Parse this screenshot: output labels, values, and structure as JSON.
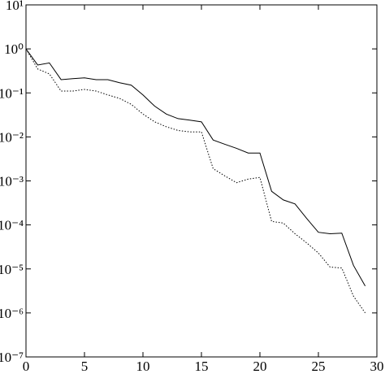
{
  "chart_data": {
    "type": "line",
    "x": [
      0,
      1,
      2,
      3,
      4,
      5,
      6,
      7,
      8,
      9,
      10,
      11,
      12,
      13,
      14,
      15,
      16,
      17,
      18,
      19,
      20,
      21,
      22,
      23,
      24,
      25,
      26,
      27,
      28,
      29
    ],
    "series": [
      {
        "color": "#000000",
        "dash": "solid",
        "values": [
          1.0,
          0.43,
          0.48,
          0.2,
          0.21,
          0.22,
          0.2,
          0.2,
          0.17,
          0.15,
          0.09,
          0.05,
          0.033,
          0.026,
          0.024,
          0.022,
          0.0085,
          0.0068,
          0.0055,
          0.0043,
          0.0043,
          0.00058,
          0.00037,
          0.0003,
          0.00014,
          6.8e-05,
          6.3e-05,
          6.5e-05,
          1.2e-05,
          4.1e-06
        ]
      },
      {
        "color": "#000000",
        "dash": "dotted",
        "values": [
          1.0,
          0.35,
          0.27,
          0.11,
          0.11,
          0.12,
          0.11,
          0.09,
          0.075,
          0.055,
          0.033,
          0.022,
          0.017,
          0.014,
          0.013,
          0.013,
          0.0019,
          0.0013,
          0.00091,
          0.0011,
          0.0012,
          0.00012,
          0.00011,
          6.3e-05,
          3.9e-05,
          2.3e-05,
          1.1e-05,
          1.05e-05,
          2.4e-06,
          1e-06
        ]
      }
    ],
    "xlim": [
      0,
      30
    ],
    "xticks": [
      0,
      5,
      10,
      15,
      20,
      25,
      30
    ],
    "ylim": [
      1e-07,
      10
    ],
    "ylog": true,
    "yticks": [
      {
        "value": 10,
        "label": "10¹"
      },
      {
        "value": 1,
        "label": "10⁰"
      },
      {
        "value": 0.1,
        "label": "10⁻¹"
      },
      {
        "value": 0.01,
        "label": "10⁻²"
      },
      {
        "value": 0.001,
        "label": "10⁻³"
      },
      {
        "value": 0.0001,
        "label": "10⁻⁴"
      },
      {
        "value": 1e-05,
        "label": "10⁻⁵"
      },
      {
        "value": 1e-06,
        "label": "10⁻⁶"
      },
      {
        "value": 1e-07,
        "label": "10⁻⁷"
      }
    ]
  }
}
